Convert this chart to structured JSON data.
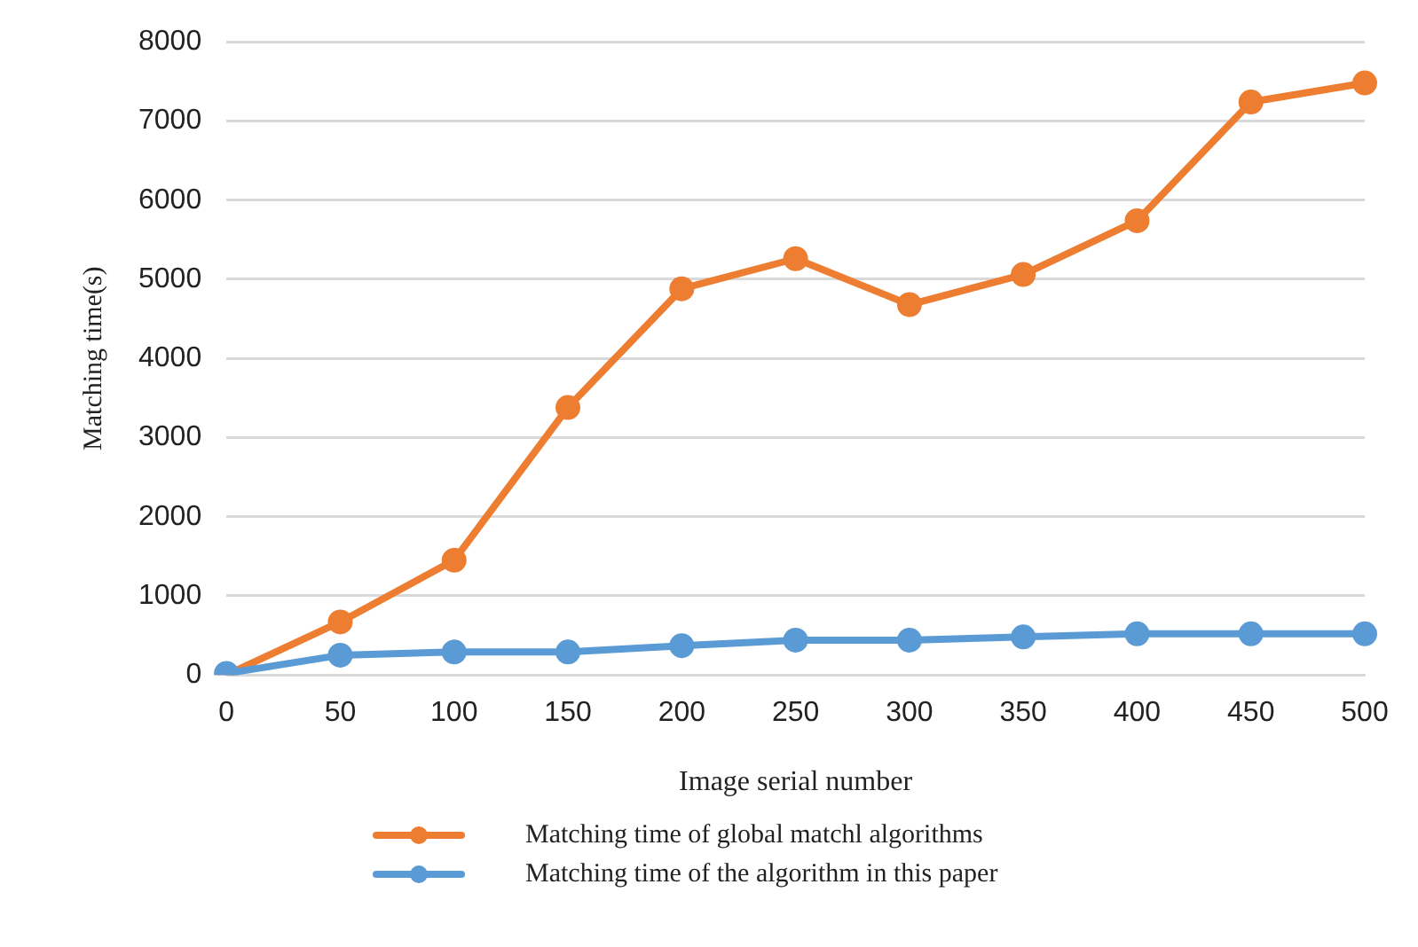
{
  "chart_data": {
    "type": "line",
    "xlabel": "Image serial number",
    "ylabel": "Matching time(s)",
    "categories": [
      "0",
      "50",
      "100",
      "150",
      "200",
      "250",
      "300",
      "350",
      "400",
      "450",
      "500"
    ],
    "series": [
      {
        "name": "Matching time of global matchl algorithms",
        "color": "#ed7d31",
        "values": [
          0,
          670,
          1450,
          3380,
          4880,
          5260,
          4680,
          5060,
          5740,
          7240,
          7480
        ]
      },
      {
        "name": "Matching time of the algorithm in this paper",
        "color": "#5b9bd5",
        "values": [
          20,
          250,
          290,
          290,
          370,
          440,
          440,
          480,
          520,
          520,
          520
        ]
      }
    ],
    "ylim": [
      0,
      8000
    ],
    "yticks": [
      0,
      1000,
      2000,
      3000,
      4000,
      5000,
      6000,
      7000,
      8000
    ],
    "grid": "y",
    "legend": "bottom",
    "marker": "circle",
    "line_style": "solid"
  }
}
